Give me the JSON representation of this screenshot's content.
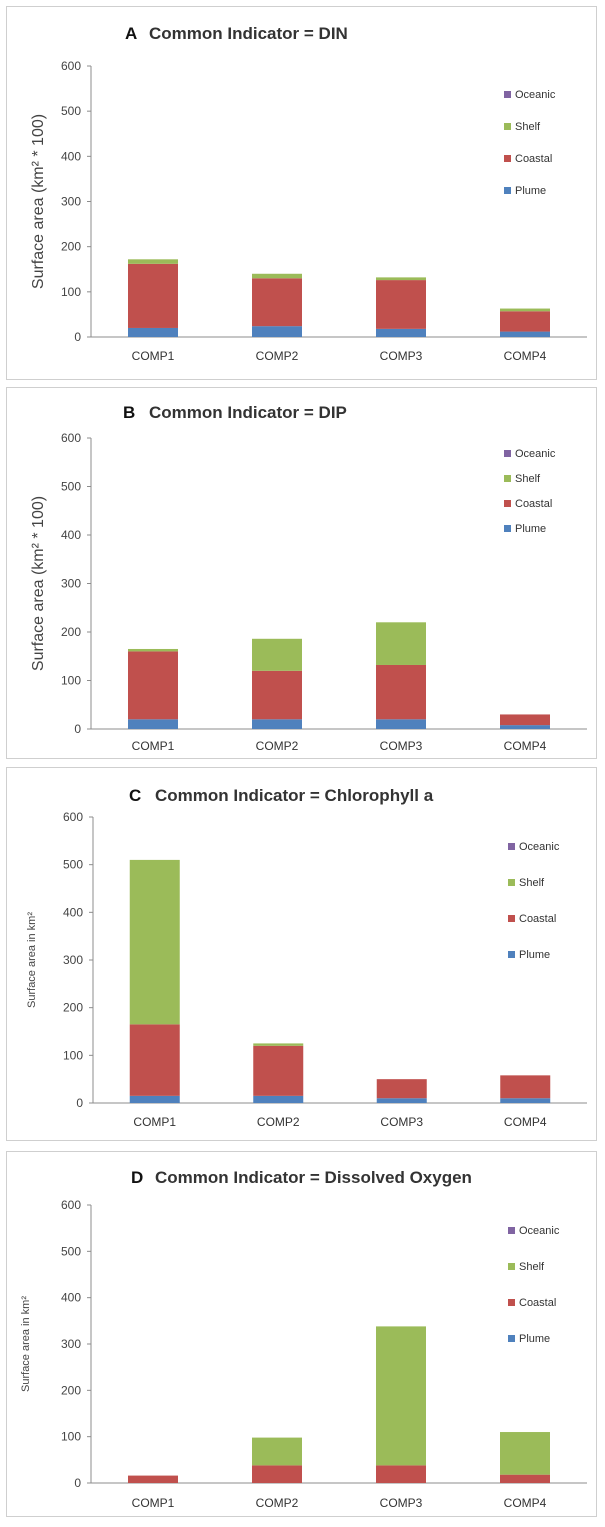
{
  "colors": {
    "Oceanic": "#8064a2",
    "Shelf": "#9bbb59",
    "Coastal": "#c0504d",
    "Plume": "#4f81bd"
  },
  "chart_data": [
    {
      "type": "bar",
      "stacked": true,
      "letter": "A",
      "title": "Common Indicator = DIN",
      "ylabel": "Surface area (km² * 100)",
      "xlabel": "",
      "ylim": [
        0,
        600
      ],
      "yticks": [
        0,
        100,
        200,
        300,
        400,
        500,
        600
      ],
      "categories": [
        "COMP1",
        "COMP2",
        "COMP3",
        "COMP4"
      ],
      "legend_order": [
        "Oceanic",
        "Shelf",
        "Coastal",
        "Plume"
      ],
      "series": [
        {
          "name": "Plume",
          "values": [
            20,
            24,
            18,
            12
          ]
        },
        {
          "name": "Coastal",
          "values": [
            142,
            106,
            108,
            45
          ]
        },
        {
          "name": "Shelf",
          "values": [
            10,
            10,
            6,
            6
          ]
        },
        {
          "name": "Oceanic",
          "values": [
            0,
            0,
            0,
            0
          ]
        }
      ]
    },
    {
      "type": "bar",
      "stacked": true,
      "letter": "B",
      "title": "Common Indicator = DIP",
      "ylabel": "Surface area (km² * 100)",
      "xlabel": "",
      "ylim": [
        0,
        600
      ],
      "yticks": [
        0,
        100,
        200,
        300,
        400,
        500,
        600
      ],
      "categories": [
        "COMP1",
        "COMP2",
        "COMP3",
        "COMP4"
      ],
      "legend_order": [
        "Oceanic",
        "Shelf",
        "Coastal",
        "Plume"
      ],
      "series": [
        {
          "name": "Plume",
          "values": [
            20,
            20,
            20,
            8
          ]
        },
        {
          "name": "Coastal",
          "values": [
            140,
            100,
            112,
            22
          ]
        },
        {
          "name": "Shelf",
          "values": [
            5,
            66,
            88,
            0
          ]
        },
        {
          "name": "Oceanic",
          "values": [
            0,
            0,
            0,
            0
          ]
        }
      ]
    },
    {
      "type": "bar",
      "stacked": true,
      "letter": "C",
      "title": "Common Indicator = Chlorophyll a",
      "ylabel": "Surface area in km²",
      "xlabel": "",
      "ylim": [
        0,
        600
      ],
      "yticks": [
        0,
        100,
        200,
        300,
        400,
        500,
        600
      ],
      "categories": [
        "COMP1",
        "COMP2",
        "COMP3",
        "COMP4"
      ],
      "legend_order": [
        "Oceanic",
        "Shelf",
        "Coastal",
        "Plume"
      ],
      "series": [
        {
          "name": "Plume",
          "values": [
            15,
            15,
            10,
            10
          ]
        },
        {
          "name": "Coastal",
          "values": [
            150,
            105,
            40,
            48
          ]
        },
        {
          "name": "Shelf",
          "values": [
            345,
            5,
            0,
            0
          ]
        },
        {
          "name": "Oceanic",
          "values": [
            0,
            0,
            0,
            0
          ]
        }
      ]
    },
    {
      "type": "bar",
      "stacked": true,
      "letter": "D",
      "title": "Common Indicator = Dissolved Oxygen",
      "ylabel": "Surface area in km²",
      "xlabel": "",
      "ylim": [
        0,
        600
      ],
      "yticks": [
        0,
        100,
        200,
        300,
        400,
        500,
        600
      ],
      "categories": [
        "COMP1",
        "COMP2",
        "COMP3",
        "COMP4"
      ],
      "legend_order": [
        "Oceanic",
        "Shelf",
        "Coastal",
        "Plume"
      ],
      "series": [
        {
          "name": "Plume",
          "values": [
            0,
            0,
            0,
            0
          ]
        },
        {
          "name": "Coastal",
          "values": [
            16,
            38,
            38,
            18
          ]
        },
        {
          "name": "Shelf",
          "values": [
            0,
            60,
            300,
            92
          ]
        },
        {
          "name": "Oceanic",
          "values": [
            0,
            0,
            0,
            0
          ]
        }
      ]
    }
  ]
}
